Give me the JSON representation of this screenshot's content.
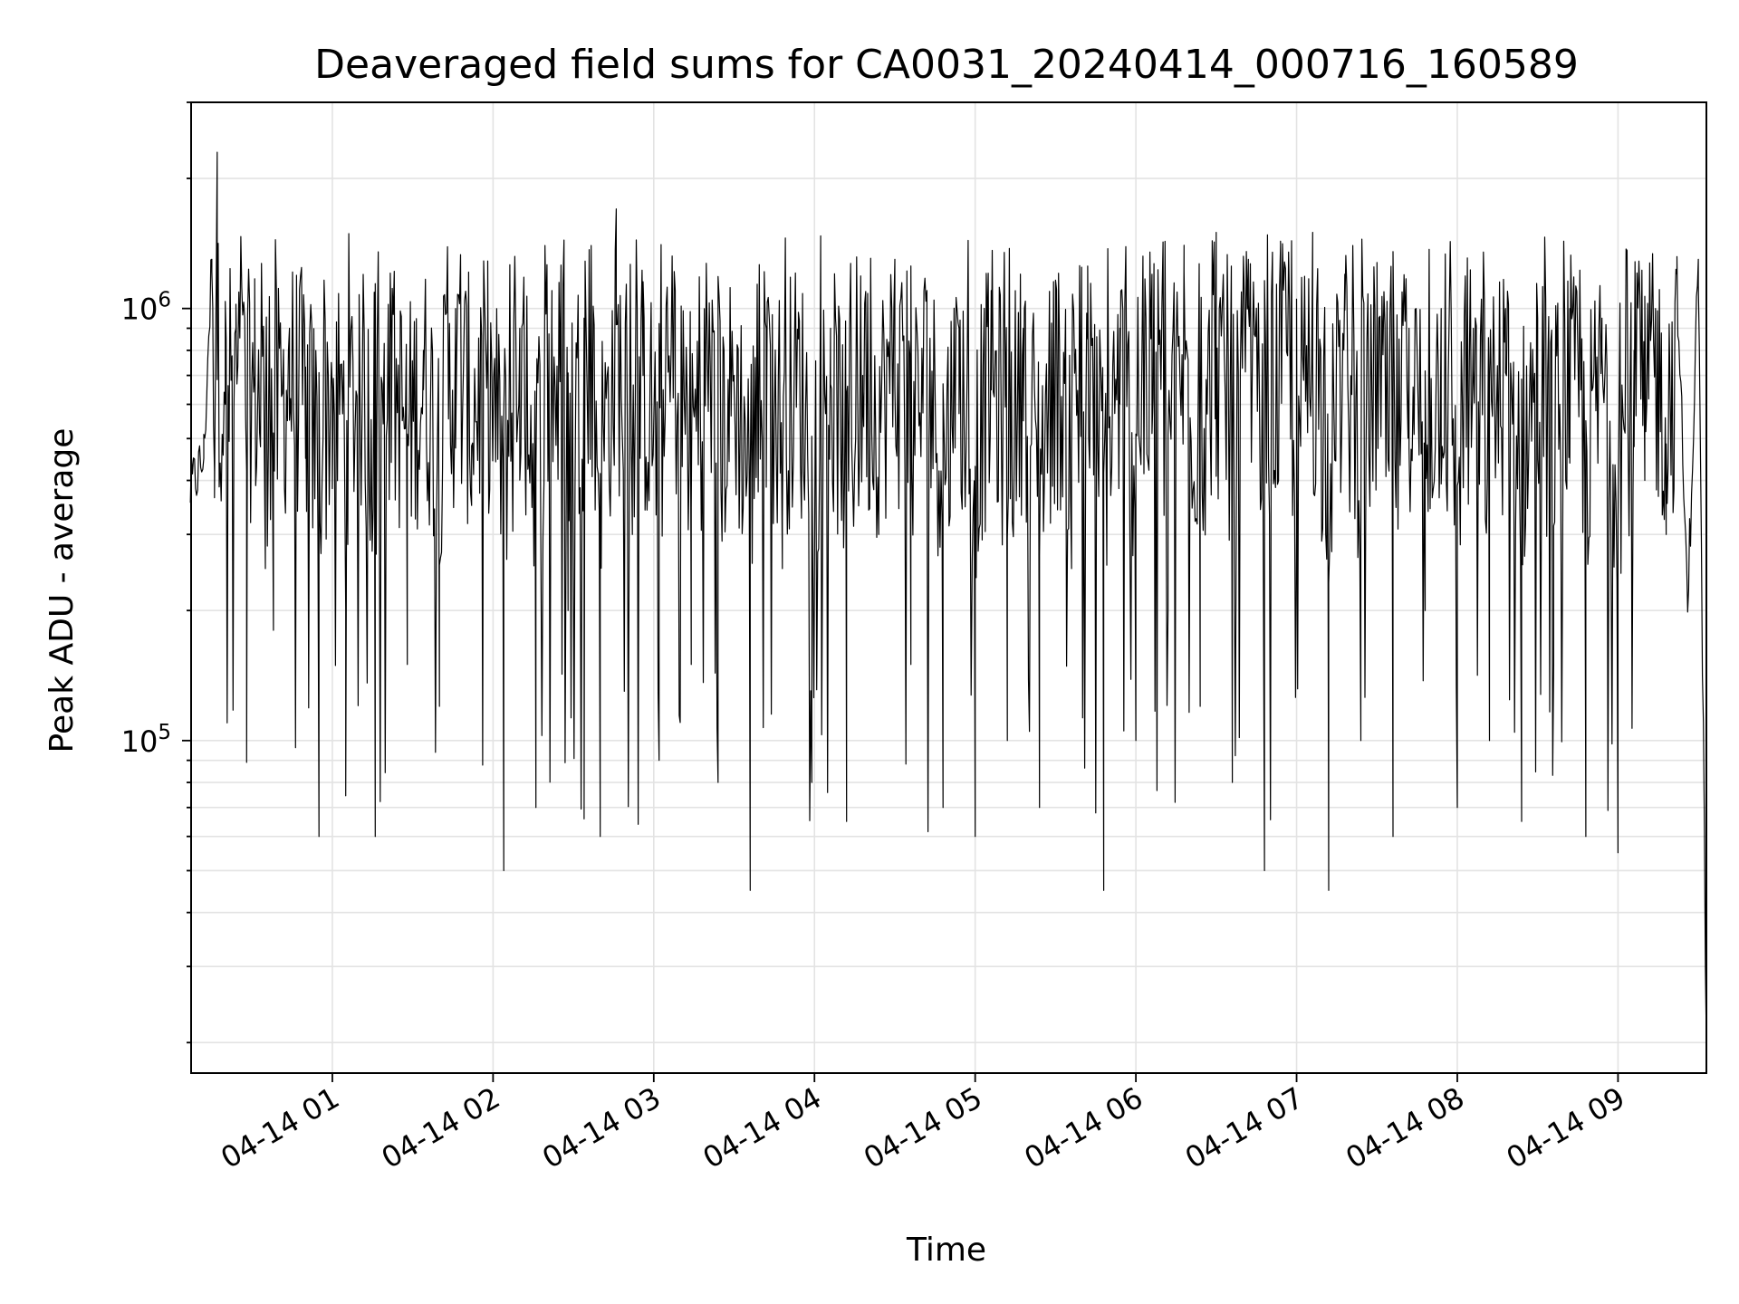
{
  "chart_data": {
    "type": "line",
    "title": "Deaveraged field sums for CA0031_20240414_000716_160589",
    "xlabel": "Time",
    "ylabel": "Peak ADU - average",
    "x_scale": "time",
    "y_scale": "log",
    "xlim": [
      "2024-04-14 00:07:16",
      "2024-04-14 09:33:00"
    ],
    "ylim": [
      17000,
      3000000
    ],
    "x_ticks": [
      {
        "value": "2024-04-14 01:00",
        "label": "04-14 01"
      },
      {
        "value": "2024-04-14 02:00",
        "label": "04-14 02"
      },
      {
        "value": "2024-04-14 03:00",
        "label": "04-14 03"
      },
      {
        "value": "2024-04-14 04:00",
        "label": "04-14 04"
      },
      {
        "value": "2024-04-14 05:00",
        "label": "04-14 05"
      },
      {
        "value": "2024-04-14 06:00",
        "label": "04-14 06"
      },
      {
        "value": "2024-04-14 07:00",
        "label": "04-14 07"
      },
      {
        "value": "2024-04-14 08:00",
        "label": "04-14 08"
      },
      {
        "value": "2024-04-14 09:00",
        "label": "04-14 09"
      }
    ],
    "y_ticks": [
      {
        "value": 100000,
        "base": "10",
        "exp": "5"
      },
      {
        "value": 1000000,
        "base": "10",
        "exp": "6"
      }
    ],
    "grid": true,
    "legend": "none",
    "line_color": "#000000",
    "series": [
      {
        "x": [
          "2024-04-14 00:07",
          "2024-04-14 00:12",
          "2024-04-14 00:15",
          "2024-04-14 00:16",
          "2024-04-14 00:17",
          "2024-04-14 00:20",
          "2024-04-14 00:24",
          "2024-04-14 00:28",
          "2024-04-14 00:31",
          "2024-04-14 00:35",
          "2024-04-14 00:38",
          "2024-04-14 00:44",
          "2024-04-14 00:50",
          "2024-04-14 00:55",
          "2024-04-14 01:00",
          "2024-04-14 01:05",
          "2024-04-14 01:10",
          "2024-04-14 01:16",
          "2024-04-14 01:22",
          "2024-04-14 01:28",
          "2024-04-14 01:34",
          "2024-04-14 01:40",
          "2024-04-14 01:46",
          "2024-04-14 01:52",
          "2024-04-14 01:58",
          "2024-04-14 02:04",
          "2024-04-14 02:10",
          "2024-04-14 02:16",
          "2024-04-14 02:22",
          "2024-04-14 02:28",
          "2024-04-14 02:34",
          "2024-04-14 02:40",
          "2024-04-14 02:46",
          "2024-04-14 02:52",
          "2024-04-14 02:56",
          "2024-04-14 03:02",
          "2024-04-14 03:08",
          "2024-04-14 03:14",
          "2024-04-14 03:20",
          "2024-04-14 03:24",
          "2024-04-14 03:30",
          "2024-04-14 03:36",
          "2024-04-14 03:42",
          "2024-04-14 03:48",
          "2024-04-14 03:54",
          "2024-04-14 03:59",
          "2024-04-14 04:06",
          "2024-04-14 04:12",
          "2024-04-14 04:18",
          "2024-04-14 04:24",
          "2024-04-14 04:30",
          "2024-04-14 04:36",
          "2024-04-14 04:42",
          "2024-04-14 04:48",
          "2024-04-14 04:54",
          "2024-04-14 05:00",
          "2024-04-14 05:06",
          "2024-04-14 05:12",
          "2024-04-14 05:18",
          "2024-04-14 05:24",
          "2024-04-14 05:30",
          "2024-04-14 05:36",
          "2024-04-14 05:42",
          "2024-04-14 05:48",
          "2024-04-14 05:54",
          "2024-04-14 06:00",
          "2024-04-14 06:06",
          "2024-04-14 06:12",
          "2024-04-14 06:18",
          "2024-04-14 06:24",
          "2024-04-14 06:30",
          "2024-04-14 06:36",
          "2024-04-14 06:42",
          "2024-04-14 06:48",
          "2024-04-14 06:54",
          "2024-04-14 07:00",
          "2024-04-14 07:06",
          "2024-04-14 07:12",
          "2024-04-14 07:18",
          "2024-04-14 07:24",
          "2024-04-14 07:30",
          "2024-04-14 07:36",
          "2024-04-14 07:42",
          "2024-04-14 07:48",
          "2024-04-14 07:54",
          "2024-04-14 08:00",
          "2024-04-14 08:06",
          "2024-04-14 08:12",
          "2024-04-14 08:18",
          "2024-04-14 08:24",
          "2024-04-14 08:30",
          "2024-04-14 08:36",
          "2024-04-14 08:42",
          "2024-04-14 08:48",
          "2024-04-14 08:54",
          "2024-04-14 09:00",
          "2024-04-14 09:06",
          "2024-04-14 09:10",
          "2024-04-14 09:14",
          "2024-04-14 09:18",
          "2024-04-14 09:22",
          "2024-04-14 09:26",
          "2024-04-14 09:30",
          "2024-04-14 09:33"
        ],
        "y": [
          380000,
          450000,
          1300000,
          420000,
          2300000,
          600000,
          900000,
          420000,
          700000,
          250000,
          180000,
          900000,
          450000,
          60000,
          650000,
          200000,
          900000,
          60000,
          850000,
          150000,
          800000,
          120000,
          1000000,
          350000,
          850000,
          50000,
          900000,
          70000,
          1100000,
          200000,
          950000,
          60000,
          1700000,
          300000,
          700000,
          90000,
          1100000,
          150000,
          800000,
          80000,
          700000,
          45000,
          900000,
          250000,
          850000,
          80000,
          900000,
          65000,
          700000,
          300000,
          1300000,
          150000,
          1100000,
          70000,
          900000,
          60000,
          1100000,
          100000,
          900000,
          70000,
          900000,
          250000,
          850000,
          45000,
          900000,
          100000,
          1200000,
          200000,
          1400000,
          120000,
          1500000,
          80000,
          1300000,
          50000,
          1400000,
          300000,
          1500000,
          45000,
          1200000,
          100000,
          1000000,
          60000,
          900000,
          200000,
          1000000,
          70000,
          900000,
          100000,
          1000000,
          65000,
          950000,
          150000,
          1000000,
          60000,
          950000,
          55000,
          800000,
          400000,
          1000000,
          300000,
          1200000,
          200000,
          1300000,
          20000
        ]
      }
    ]
  }
}
